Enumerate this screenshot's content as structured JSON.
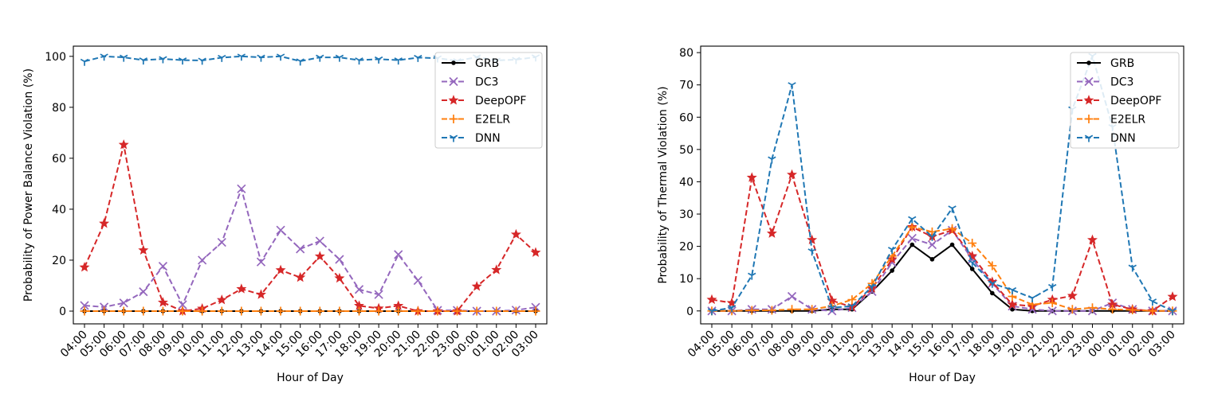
{
  "chart_data": [
    {
      "type": "line",
      "title": "",
      "xlabel": "Hour of Day",
      "ylabel": "Probability of Power Balance Violation (%)",
      "categories": [
        "04:00",
        "05:00",
        "06:00",
        "07:00",
        "08:00",
        "09:00",
        "10:00",
        "11:00",
        "12:00",
        "13:00",
        "14:00",
        "15:00",
        "16:00",
        "17:00",
        "18:00",
        "19:00",
        "20:00",
        "21:00",
        "22:00",
        "23:00",
        "00:00",
        "01:00",
        "02:00",
        "03:00"
      ],
      "ylim": [
        -5,
        104
      ],
      "yticks": [
        0,
        20,
        40,
        60,
        80,
        100
      ],
      "grid": false,
      "legend_position": "top-right",
      "series": [
        {
          "name": "GRB",
          "color": "#000000",
          "dash": "solid",
          "marker": "dot",
          "values": [
            0,
            0,
            0,
            0,
            0,
            0,
            0,
            0,
            0,
            0,
            0,
            0,
            0,
            0,
            0,
            0,
            0,
            0,
            0,
            0,
            0,
            0,
            0,
            0
          ]
        },
        {
          "name": "DC3",
          "color": "#9467bd",
          "dash": "dashed",
          "marker": "x",
          "values": [
            2.2,
            1.6,
            3.2,
            7.6,
            17.6,
            2.5,
            20,
            27,
            48,
            19.3,
            31.8,
            24.4,
            27.5,
            20.3,
            8.5,
            6.5,
            22.2,
            12,
            0.3,
            0.3,
            0,
            0,
            0.4,
            1.5
          ]
        },
        {
          "name": "DeepOPF",
          "color": "#d62728",
          "dash": "dashed",
          "marker": "star",
          "values": [
            17.2,
            34.4,
            65.3,
            23.9,
            3.4,
            0,
            1,
            4.4,
            8.7,
            6.5,
            16.1,
            13.2,
            21.5,
            12.9,
            2.1,
            1.1,
            2.1,
            0,
            0,
            0,
            9.7,
            16.2,
            30.1,
            23
          ]
        },
        {
          "name": "E2ELR",
          "color": "#ff7f0e",
          "dash": "dashed",
          "marker": "plus",
          "values": [
            0,
            0,
            0,
            0,
            0,
            0,
            0,
            0,
            0,
            0,
            0,
            0,
            0,
            0,
            0,
            0,
            0,
            0,
            0,
            0,
            0,
            0,
            0,
            0
          ]
        },
        {
          "name": "DNN",
          "color": "#1f77b4",
          "dash": "dashed",
          "marker": "tri",
          "values": [
            98,
            100,
            99.6,
            98.5,
            99,
            98.5,
            98.4,
            99.5,
            100,
            99.6,
            100,
            98.1,
            99.6,
            99.6,
            98.5,
            98.9,
            98.5,
            99.5,
            99.3,
            98.2,
            99.7,
            98.4,
            98.7,
            99.7
          ]
        }
      ]
    },
    {
      "type": "line",
      "title": "",
      "xlabel": "Hour of Day",
      "ylabel": "Probability of Thermal Violation (%)",
      "categories": [
        "04:00",
        "05:00",
        "06:00",
        "07:00",
        "08:00",
        "09:00",
        "10:00",
        "11:00",
        "12:00",
        "13:00",
        "14:00",
        "15:00",
        "16:00",
        "17:00",
        "18:00",
        "19:00",
        "20:00",
        "21:00",
        "22:00",
        "23:00",
        "00:00",
        "01:00",
        "02:00",
        "03:00"
      ],
      "ylim": [
        -4,
        82
      ],
      "yticks": [
        0,
        10,
        20,
        30,
        40,
        50,
        60,
        70,
        80
      ],
      "grid": false,
      "legend_position": "top-right",
      "series": [
        {
          "name": "GRB",
          "color": "#000000",
          "dash": "solid",
          "marker": "dot",
          "values": [
            0,
            0,
            0,
            0,
            0,
            0,
            0.5,
            0.5,
            6,
            12.5,
            20.5,
            16,
            20.5,
            13,
            5.5,
            0.5,
            0,
            0,
            0,
            0,
            0,
            0,
            0,
            0
          ]
        },
        {
          "name": "DC3",
          "color": "#9467bd",
          "dash": "dashed",
          "marker": "x",
          "values": [
            0,
            0,
            0.5,
            0.5,
            4.5,
            0.5,
            0,
            1,
            6,
            15,
            22.5,
            20.5,
            25,
            16,
            8.5,
            1.5,
            0.5,
            0,
            0,
            0,
            2.5,
            0.5,
            0,
            0
          ]
        },
        {
          "name": "DeepOPF",
          "color": "#d62728",
          "dash": "dashed",
          "marker": "star",
          "values": [
            3.5,
            2.5,
            41.3,
            24,
            42.2,
            22,
            3.2,
            1.2,
            7,
            16,
            26,
            23,
            25,
            17,
            9,
            2,
            1.5,
            3.5,
            4.7,
            22,
            2,
            0.5,
            0,
            4.4
          ]
        },
        {
          "name": "E2ELR",
          "color": "#ff7f0e",
          "dash": "dashed",
          "marker": "plus",
          "values": [
            0,
            0,
            0.2,
            0.2,
            0.5,
            0.5,
            1.5,
            3.5,
            8.5,
            17,
            26,
            24.5,
            25.5,
            21,
            14,
            4.5,
            2,
            2.5,
            0.5,
            1,
            0.5,
            0.3,
            0,
            0
          ]
        },
        {
          "name": "DNN",
          "color": "#1f77b4",
          "dash": "dashed",
          "marker": "tri",
          "values": [
            0,
            1,
            11,
            47,
            70,
            18.5,
            1,
            1.5,
            7.5,
            19,
            28.5,
            23,
            31.8,
            15,
            8.5,
            6.5,
            4,
            7.5,
            62.5,
            79,
            57,
            13.5,
            3,
            0
          ]
        }
      ]
    }
  ]
}
